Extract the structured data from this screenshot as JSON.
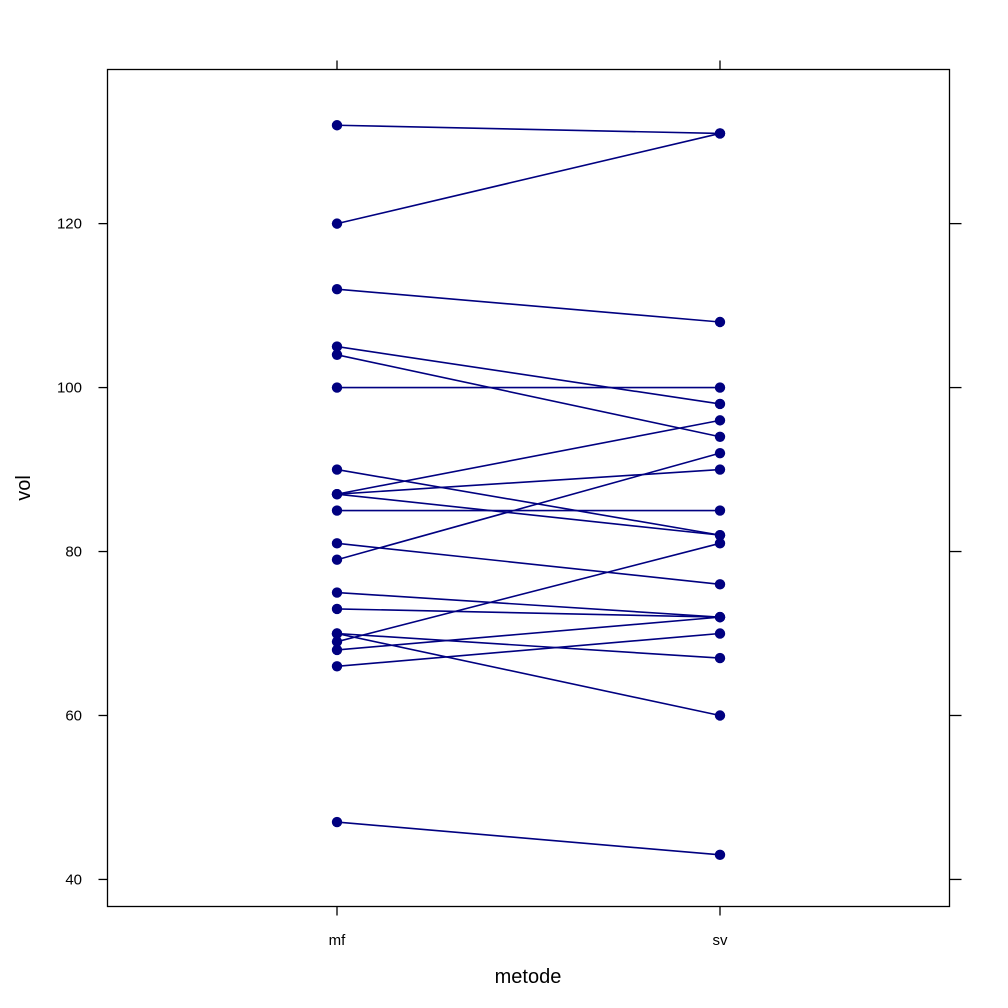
{
  "chart_data": {
    "type": "line",
    "title": "",
    "xlabel": "metode",
    "ylabel": "vol",
    "categories": [
      "mf",
      "sv"
    ],
    "ylim": [
      36.7,
      138.8
    ],
    "yticks": [
      40,
      60,
      80,
      100,
      120
    ],
    "grid": false,
    "legend": "none",
    "color": "#000080",
    "pairs": [
      {
        "mf": 132,
        "sv": 131
      },
      {
        "mf": 120,
        "sv": 131
      },
      {
        "mf": 112,
        "sv": 108
      },
      {
        "mf": 105,
        "sv": 98
      },
      {
        "mf": 104,
        "sv": 94
      },
      {
        "mf": 100,
        "sv": 100
      },
      {
        "mf": 90,
        "sv": 82
      },
      {
        "mf": 87,
        "sv": 96
      },
      {
        "mf": 87,
        "sv": 90
      },
      {
        "mf": 87,
        "sv": 82
      },
      {
        "mf": 85,
        "sv": 85
      },
      {
        "mf": 81,
        "sv": 76
      },
      {
        "mf": 79,
        "sv": 92
      },
      {
        "mf": 75,
        "sv": 72
      },
      {
        "mf": 73,
        "sv": 72
      },
      {
        "mf": 70,
        "sv": 67
      },
      {
        "mf": 70,
        "sv": 60
      },
      {
        "mf": 69,
        "sv": 81
      },
      {
        "mf": 68,
        "sv": 72
      },
      {
        "mf": 66,
        "sv": 70
      },
      {
        "mf": 47,
        "sv": 43
      }
    ]
  }
}
